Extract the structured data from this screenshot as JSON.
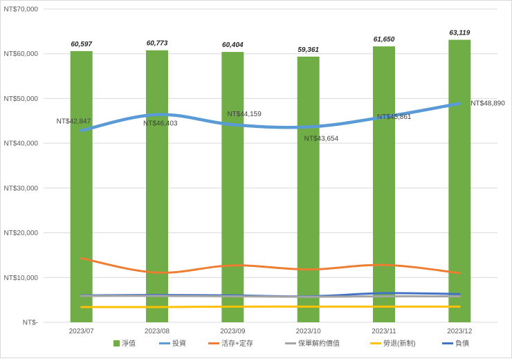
{
  "chart_data": {
    "type": "bar+line",
    "title": "",
    "xlabel": "",
    "ylabel": "",
    "ylim": [
      0,
      70000
    ],
    "ytick_step": 10000,
    "ytick_labels": [
      "NT$-",
      "NT$10,000",
      "NT$20,000",
      "NT$30,000",
      "NT$40,000",
      "NT$50,000",
      "NT$60,000",
      "NT$70,000"
    ],
    "categories": [
      "2023/07",
      "2023/08",
      "2023/09",
      "2023/10",
      "2023/11",
      "2023/12"
    ],
    "bar_series": {
      "name": "淨值",
      "color": "#70ad47",
      "values": [
        60597,
        60773,
        60404,
        59361,
        61650,
        63119
      ],
      "labels": [
        "60,597",
        "60,773",
        "60,404",
        "59,361",
        "61,650",
        "63,119"
      ]
    },
    "line_series": [
      {
        "name": "投資",
        "color": "#5b9bd5",
        "values": [
          42847,
          46403,
          44159,
          43654,
          45861,
          48890
        ],
        "labels": [
          "NT$42,847",
          "NT$46,403",
          "NT$44,159",
          "NT$43,654",
          "NT$45,861",
          "NT$48,890"
        ]
      },
      {
        "name": "活存+定存",
        "color": "#ed7d31",
        "values": [
          14300,
          11100,
          12700,
          11800,
          12800,
          11000
        ]
      },
      {
        "name": "保單解約價值",
        "color": "#a5a5a5",
        "values": [
          5900,
          5900,
          5800,
          5700,
          5800,
          5800
        ]
      },
      {
        "name": "勞退(新制)",
        "color": "#ffc000",
        "values": [
          3400,
          3400,
          3500,
          3500,
          3500,
          3500
        ]
      },
      {
        "name": "負債",
        "color": "#4472c4",
        "values": [
          6000,
          6100,
          6000,
          5800,
          6500,
          6300
        ]
      }
    ],
    "legend": [
      "淨值",
      "投資",
      "活存+定存",
      "保單解約價值",
      "勞退(新制)",
      "負債"
    ],
    "legend_position": "bottom",
    "grid": true
  }
}
